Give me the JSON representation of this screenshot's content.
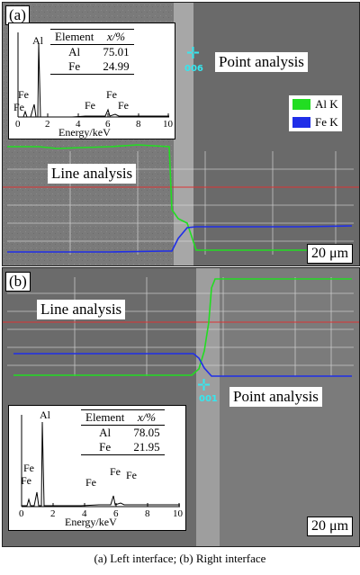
{
  "panel_a": {
    "tag": "(a)",
    "point_label": "Point analysis",
    "line_label": "Line analysis",
    "marker": "006",
    "scale": "20 μm",
    "legend": [
      {
        "label": "Al K",
        "color": "#22dd22"
      },
      {
        "label": "Fe K",
        "color": "#1f2ee8"
      }
    ],
    "inset": {
      "table_header": [
        "Element",
        "x/%"
      ],
      "rows": [
        [
          "Al",
          "75.01"
        ],
        [
          "Fe",
          "24.99"
        ]
      ],
      "peak_labels": [
        "Al",
        "Fe",
        "Fe",
        "Fe",
        "Fe",
        "Fe"
      ],
      "x_ticks": [
        "0",
        "2",
        "4",
        "6",
        "8",
        "10"
      ],
      "xlabel": "Energy/keV"
    }
  },
  "panel_b": {
    "tag": "(b)",
    "point_label": "Point analysis",
    "line_label": "Line analysis",
    "marker": "001",
    "scale": "20 μm",
    "inset": {
      "table_header": [
        "Element",
        "x/%"
      ],
      "rows": [
        [
          "Al",
          "78.05"
        ],
        [
          "Fe",
          "21.95"
        ]
      ],
      "peak_labels": [
        "Al",
        "Fe",
        "Fe",
        "Fe",
        "Fe",
        "Fe"
      ],
      "x_ticks": [
        "0",
        "2",
        "4",
        "6",
        "8",
        "10"
      ],
      "xlabel": "Energy/keV"
    }
  },
  "caption": "(a)   Left   interface;  (b) Right interface"
}
